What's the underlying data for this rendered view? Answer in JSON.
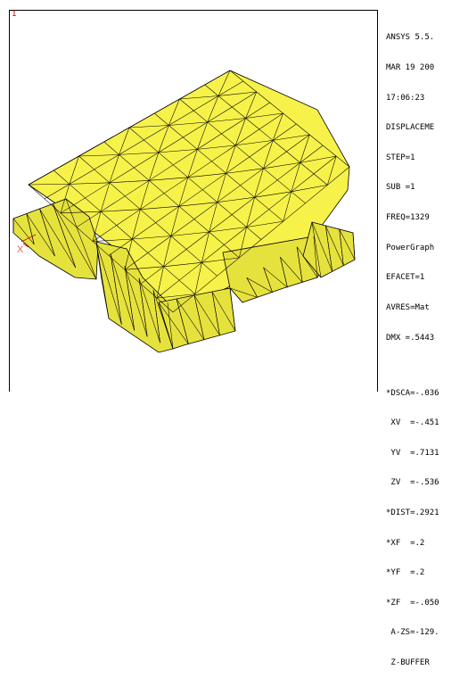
{
  "window_number": "1",
  "colors": {
    "mesh_fill": "#f6f24a",
    "mesh_shade": "#e6e23d",
    "mesh_line": "#000000",
    "window_number": "#d40000"
  },
  "status_lines": [
    "ANSYS 5.5.",
    "MAR 19 200",
    "17:06:23",
    "DISPLACEME",
    "STEP=1",
    "SUB =1",
    "FREQ=1329",
    "PowerGraph",
    "EFACET=1",
    "AVRES=Mat",
    "DMX =.5443"
  ],
  "view_lines": [
    "*DSCA=-.036",
    " XV  =-.451",
    " YV  =.7131",
    " ZV  =-.536",
    "*DIST=.2921",
    "*XF  =.2",
    "*YF  =.2",
    "*ZF  =-.050",
    " A-ZS=-129.",
    " Z-BUFFER"
  ],
  "triad_label": "X"
}
